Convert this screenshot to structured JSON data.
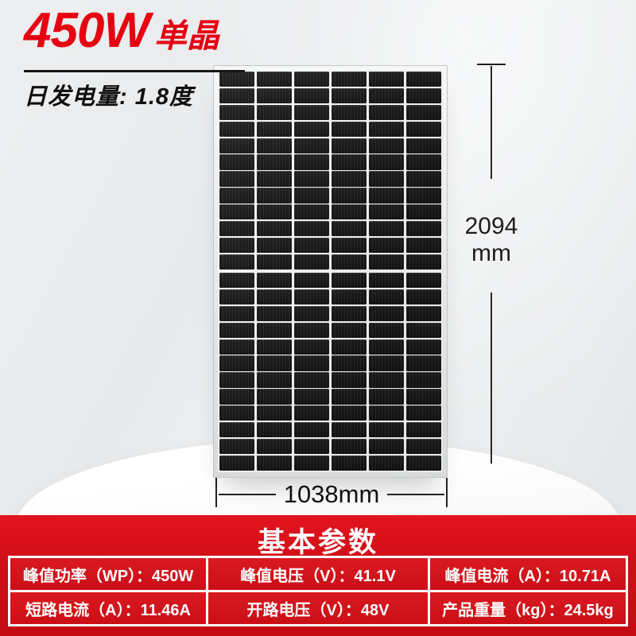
{
  "headline": {
    "power": "450W",
    "type": "单晶",
    "daily_output": "日发电量: 1.8度"
  },
  "panel": {
    "columns": 6,
    "rows_per_half": 12,
    "height_value": "2094",
    "height_unit": "mm",
    "width_value": "1038mm"
  },
  "section": {
    "title": "基本参数"
  },
  "specs": [
    "峰值功率（WP）：450W",
    "峰值电压（V）：41.1V",
    "峰值电流（A）：10.71A",
    "短路电流（A）：11.46A",
    "开路电压（V）：48V",
    "产品重量（kg）：24.5kg"
  ],
  "colors": {
    "headline_red": "#e60012",
    "banner_red": "#cd0d16",
    "cell_red": "#d5141c",
    "panel_cell_dark": "#141416"
  }
}
